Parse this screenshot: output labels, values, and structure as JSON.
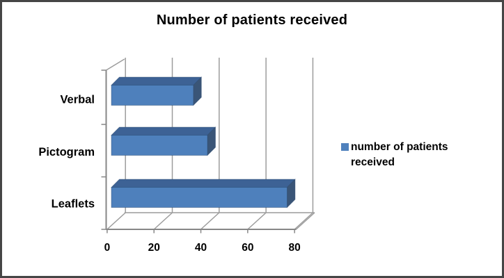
{
  "title": "Number of patients received",
  "legend": {
    "label": "number of patients received",
    "marker_color": "#4F81BD"
  },
  "chart_data": {
    "type": "bar",
    "orientation": "horizontal",
    "style": "3d",
    "title": "Number of patients received",
    "categories": [
      "Verbal",
      "Pictogram",
      "Leaflets"
    ],
    "series": [
      {
        "name": "number of patients received",
        "values": [
          35,
          41,
          75
        ]
      }
    ],
    "xlabel": "",
    "ylabel": "",
    "xlim": [
      0,
      80
    ],
    "xticks": [
      0,
      20,
      40,
      60,
      80
    ],
    "grid": true,
    "legend_position": "right"
  },
  "colors": {
    "bar_front": "#4E80BC",
    "bar_top": "#3D6295",
    "bar_side": "#3A5577",
    "bar_edge": "#2B4A70",
    "gridline": "#9C9C9C",
    "axis": "#878787",
    "text": "#000000",
    "background": "#FFFFFF",
    "border": "#454545"
  }
}
